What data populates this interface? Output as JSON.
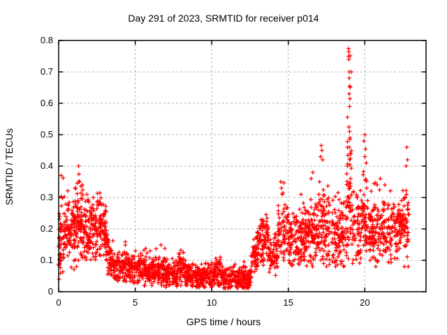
{
  "figure": {
    "title": "Day 291 of 2023, SRMTID for receiver p014",
    "xlabel": "GPS time / hours",
    "ylabel": "SRMTID / TECUs"
  },
  "chart_data": {
    "type": "scatter",
    "title": "Day 291 of 2023, SRMTID for receiver p014",
    "xlabel": "GPS time / hours",
    "ylabel": "SRMTID / TECUs",
    "xlim": [
      0,
      24
    ],
    "ylim": [
      0,
      0.8
    ],
    "xticks": [
      0,
      5,
      10,
      15,
      20
    ],
    "xtick_labels": [
      "0",
      "5",
      "10",
      "15",
      "20"
    ],
    "yticks": [
      0,
      0.1,
      0.2,
      0.3,
      0.4,
      0.5,
      0.6,
      0.7,
      0.8
    ],
    "ytick_labels": [
      "0",
      "0.1",
      "0.2",
      "0.3",
      "0.4",
      "0.5",
      "0.6",
      "0.7",
      "0.8"
    ],
    "grid": "dashed, both axes, at major ticks",
    "legend": "none",
    "marker": "plus",
    "marker_color": "#ff0000",
    "marker_size_px": 7,
    "background_color": "#ffffff",
    "border_color": "#000000",
    "grid_color": "#b3b3b3",
    "text_color": "#000000",
    "seed": 2023291,
    "bands_format": [
      "t_start_hr",
      "t_end_hr",
      "n_points",
      "v_start_TECU",
      "v_end_TECU",
      "spread",
      "v_min",
      "v_max"
    ],
    "bands": [
      [
        0.0,
        0.4,
        55,
        0.16,
        0.2,
        0.1,
        0.04,
        0.37
      ],
      [
        0.4,
        1.2,
        110,
        0.19,
        0.2,
        0.09,
        0.06,
        0.33
      ],
      [
        1.2,
        1.6,
        60,
        0.22,
        0.22,
        0.09,
        0.07,
        0.4
      ],
      [
        1.6,
        2.3,
        95,
        0.18,
        0.19,
        0.08,
        0.04,
        0.32
      ],
      [
        2.3,
        3.1,
        105,
        0.21,
        0.2,
        0.08,
        0.08,
        0.33
      ],
      [
        3.1,
        3.6,
        60,
        0.13,
        0.1,
        0.05,
        0.05,
        0.22
      ],
      [
        3.6,
        5.0,
        160,
        0.08,
        0.075,
        0.035,
        0.02,
        0.16
      ],
      [
        5.0,
        7.0,
        230,
        0.065,
        0.065,
        0.035,
        0.02,
        0.15
      ],
      [
        7.0,
        7.8,
        90,
        0.05,
        0.05,
        0.03,
        0.015,
        0.11
      ],
      [
        7.8,
        8.3,
        60,
        0.075,
        0.075,
        0.045,
        0.02,
        0.145
      ],
      [
        8.3,
        10.2,
        210,
        0.05,
        0.05,
        0.03,
        0.015,
        0.12
      ],
      [
        10.2,
        10.6,
        45,
        0.06,
        0.06,
        0.04,
        0.02,
        0.12
      ],
      [
        10.6,
        12.5,
        210,
        0.042,
        0.042,
        0.028,
        0.012,
        0.1
      ],
      [
        12.5,
        13.1,
        70,
        0.06,
        0.15,
        0.05,
        0.03,
        0.2
      ],
      [
        13.1,
        13.7,
        75,
        0.16,
        0.16,
        0.055,
        0.08,
        0.25
      ],
      [
        13.7,
        14.3,
        65,
        0.12,
        0.12,
        0.055,
        0.05,
        0.22
      ],
      [
        14.3,
        14.8,
        55,
        0.17,
        0.18,
        0.08,
        0.08,
        0.35
      ],
      [
        14.8,
        16.2,
        155,
        0.17,
        0.17,
        0.07,
        0.08,
        0.31
      ],
      [
        16.2,
        17.0,
        90,
        0.18,
        0.18,
        0.08,
        0.08,
        0.38
      ],
      [
        17.0,
        17.4,
        48,
        0.21,
        0.21,
        0.1,
        0.09,
        0.47
      ],
      [
        17.4,
        18.8,
        150,
        0.18,
        0.18,
        0.08,
        0.08,
        0.34
      ],
      [
        18.8,
        19.2,
        60,
        0.28,
        0.28,
        0.16,
        0.1,
        0.78
      ],
      [
        19.2,
        19.8,
        65,
        0.2,
        0.2,
        0.09,
        0.09,
        0.38
      ],
      [
        19.8,
        20.2,
        48,
        0.23,
        0.23,
        0.11,
        0.1,
        0.5
      ],
      [
        20.2,
        21.5,
        145,
        0.19,
        0.19,
        0.08,
        0.08,
        0.36
      ],
      [
        21.5,
        22.4,
        100,
        0.2,
        0.2,
        0.08,
        0.09,
        0.35
      ],
      [
        22.4,
        22.9,
        55,
        0.2,
        0.21,
        0.1,
        0.08,
        0.46
      ]
    ],
    "outliers_format": [
      "t_hr",
      "v_TECU"
    ],
    "outliers": [
      [
        0.15,
        0.37
      ],
      [
        1.3,
        0.4
      ],
      [
        1.33,
        0.375
      ],
      [
        1.36,
        0.35
      ],
      [
        14.5,
        0.35
      ],
      [
        14.55,
        0.33
      ],
      [
        14.6,
        0.31
      ],
      [
        16.5,
        0.36
      ],
      [
        16.6,
        0.38
      ],
      [
        17.1,
        0.43
      ],
      [
        17.15,
        0.465
      ],
      [
        17.2,
        0.45
      ],
      [
        17.25,
        0.42
      ],
      [
        18.93,
        0.775
      ],
      [
        18.95,
        0.765
      ],
      [
        18.93,
        0.75
      ],
      [
        18.96,
        0.74
      ],
      [
        18.98,
        0.7
      ],
      [
        18.97,
        0.68
      ],
      [
        19.0,
        0.655
      ],
      [
        18.98,
        0.63
      ],
      [
        19.02,
        0.615
      ],
      [
        19.0,
        0.59
      ],
      [
        18.96,
        0.525
      ],
      [
        19.0,
        0.51
      ],
      [
        19.03,
        0.49
      ],
      [
        18.97,
        0.46
      ],
      [
        19.05,
        0.44
      ],
      [
        19.0,
        0.42
      ],
      [
        19.02,
        0.405
      ],
      [
        19.95,
        0.48
      ],
      [
        20.0,
        0.5
      ],
      [
        20.05,
        0.455
      ],
      [
        20.0,
        0.43
      ],
      [
        20.1,
        0.41
      ],
      [
        20.6,
        0.345
      ],
      [
        21.0,
        0.36
      ],
      [
        21.3,
        0.34
      ],
      [
        22.7,
        0.4
      ],
      [
        22.75,
        0.46
      ],
      [
        22.8,
        0.42
      ]
    ]
  }
}
